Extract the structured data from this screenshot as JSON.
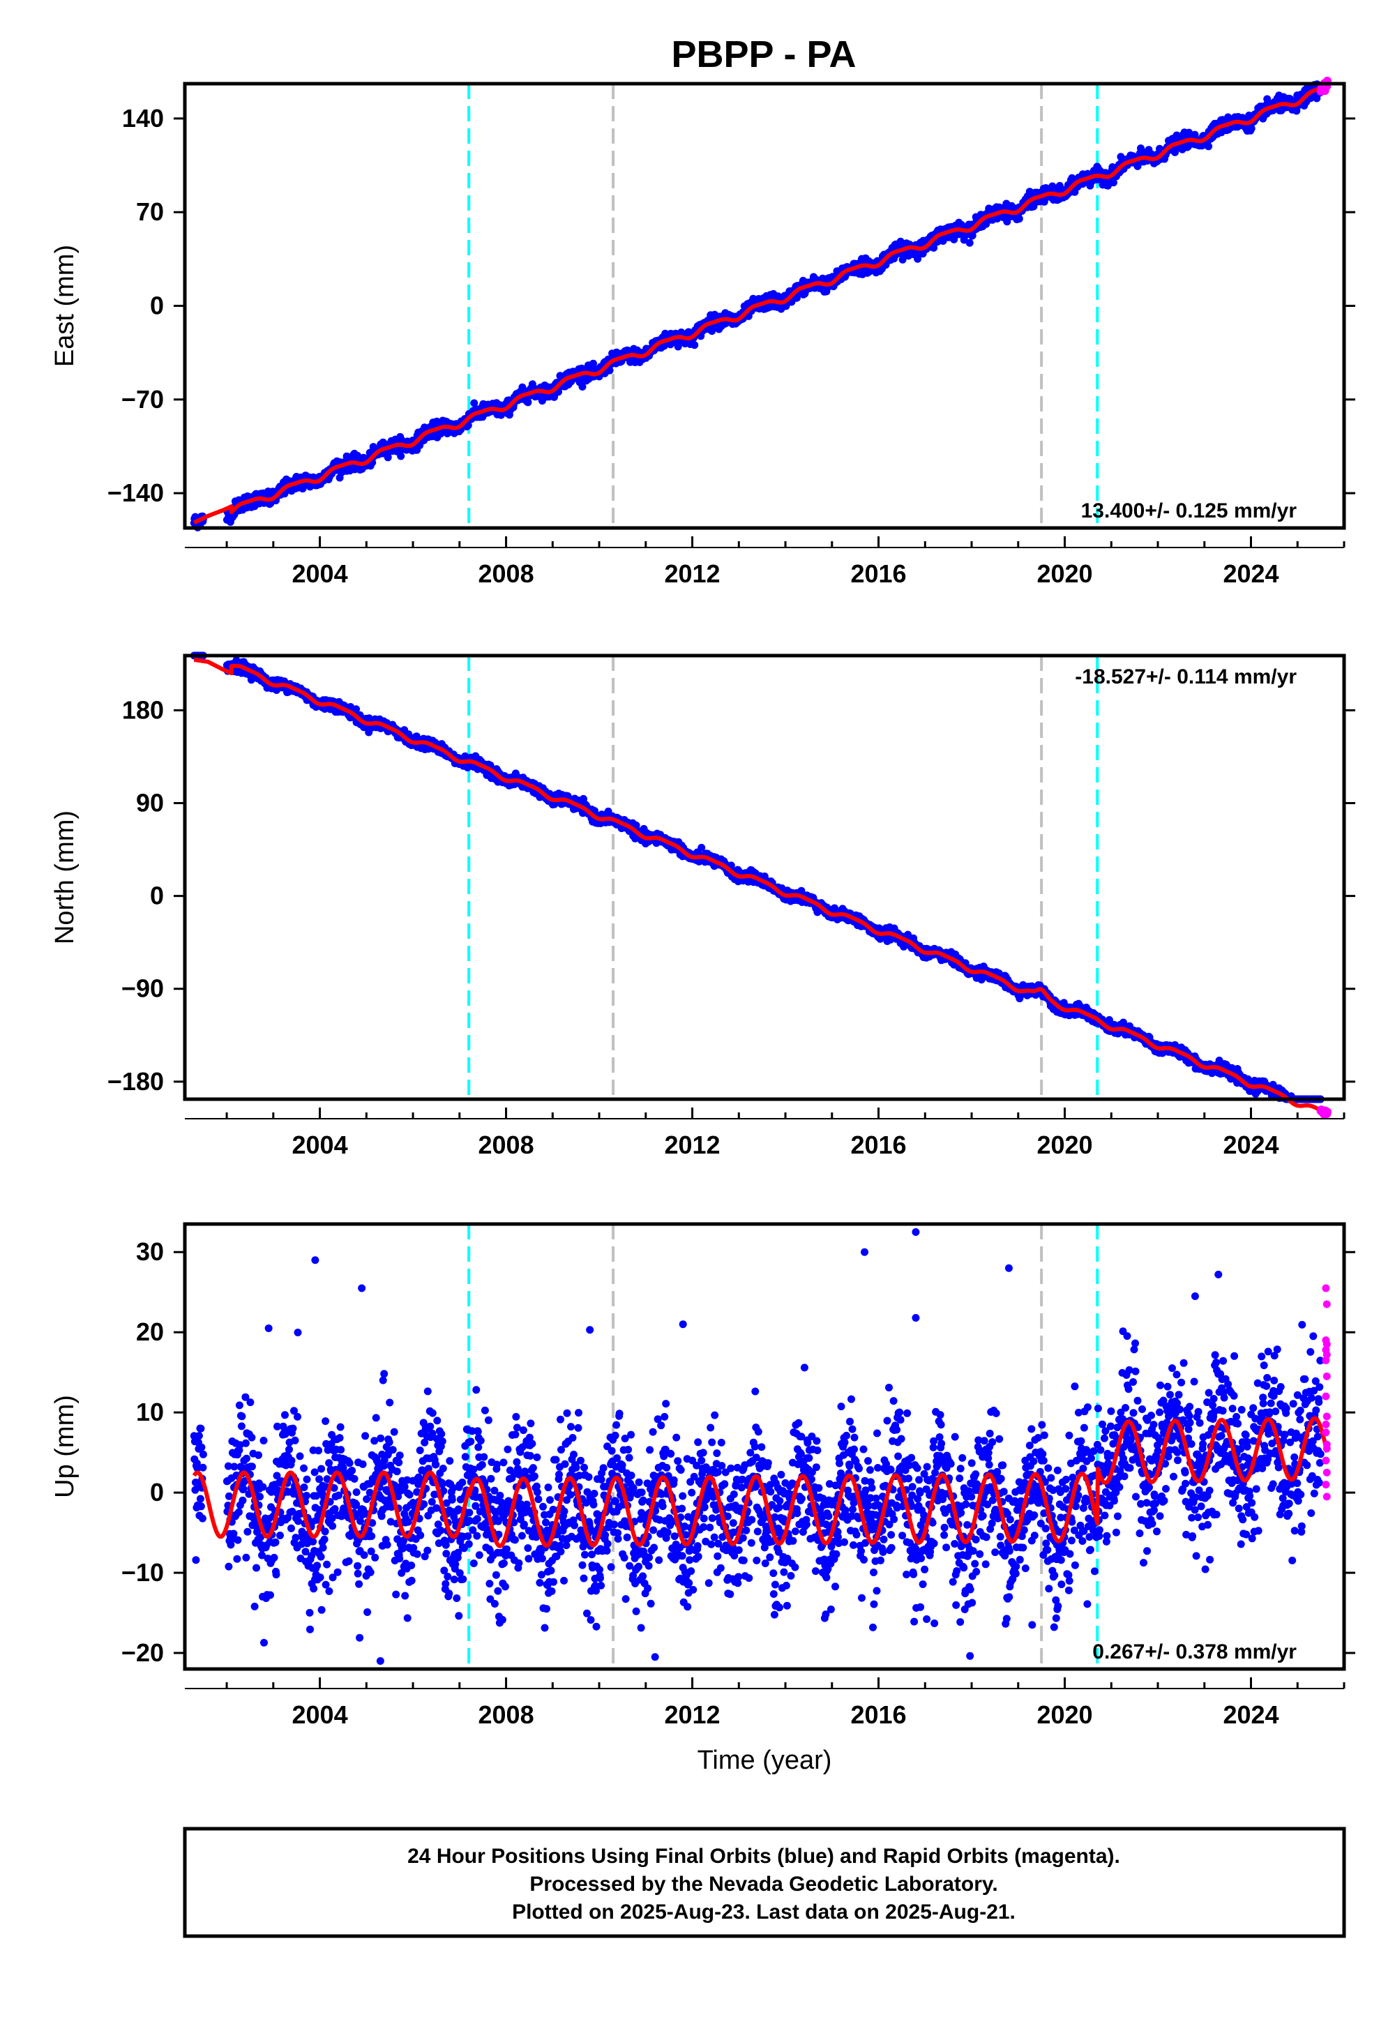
{
  "title": "PBPP - PA",
  "footer": {
    "lines": [
      "24 Hour Positions Using Final Orbits (blue) and Rapid Orbits (magenta).",
      "Processed by the Nevada Geodetic Laboratory.",
      "Plotted on 2025-Aug-23. Last data on 2025-Aug-21."
    ]
  },
  "colors": {
    "final_orbits": "#0000ff",
    "rapid_orbits": "#ff00ff",
    "model_fit": "#ff0000",
    "equipment_change": "#00ffff",
    "other_event": "#c0c0c0"
  },
  "chart_data": [
    {
      "type": "scatter",
      "component": "East",
      "ylabel": "East (mm)",
      "xlabel": "",
      "xlim": [
        2001.1,
        2026.0
      ],
      "ylim": [
        -166,
        166
      ],
      "xticks": [
        2004,
        2008,
        2012,
        2016,
        2020,
        2024
      ],
      "yticks": [
        -140,
        -70,
        0,
        70,
        140
      ],
      "rate": "13.400+/- 0.125 mm/yr",
      "rate_position": "bottom-right",
      "vertical_lines": [
        {
          "x": 2007.2,
          "kind": "equipment_change"
        },
        {
          "x": 2010.3,
          "kind": "other_event"
        },
        {
          "x": 2019.5,
          "kind": "other_event"
        },
        {
          "x": 2020.7,
          "kind": "equipment_change"
        }
      ],
      "trend": {
        "slope": 13.4,
        "ref_year": 2013.5,
        "intercept": 0,
        "annual_amp": 2.5,
        "semiannual_amp": 0.8,
        "noise": 2.5
      },
      "data_span": {
        "start": 2001.3,
        "gap": [
          2001.5,
          2002.0
        ],
        "end": 2025.64
      },
      "model_start": [
        [
          2001.3,
          -162
        ],
        [
          2001.6,
          -157
        ],
        [
          2001.9,
          -153
        ],
        [
          2002.1,
          -150
        ]
      ],
      "rapid_range": [
        2025.5,
        2025.64
      ],
      "outliers": []
    },
    {
      "type": "scatter",
      "component": "North",
      "ylabel": "North (mm)",
      "xlabel": "",
      "xlim": [
        2001.1,
        2026.0
      ],
      "ylim": [
        -197,
        233
      ],
      "xticks": [
        2004,
        2008,
        2012,
        2016,
        2020,
        2024
      ],
      "yticks": [
        -180,
        -90,
        0,
        90,
        180
      ],
      "rate": "-18.527+/- 0.114 mm/yr",
      "rate_position": "top-right",
      "vertical_lines": [
        {
          "x": 2007.2,
          "kind": "equipment_change"
        },
        {
          "x": 2010.3,
          "kind": "other_event"
        },
        {
          "x": 2019.5,
          "kind": "other_event"
        },
        {
          "x": 2020.7,
          "kind": "equipment_change"
        }
      ],
      "trend": {
        "slope": -18.527,
        "ref_year": 2013.5,
        "intercept": 13,
        "annual_amp": 2.5,
        "semiannual_amp": 0.8,
        "noise": 2.5
      },
      "data_span": {
        "start": 2001.3,
        "gap": [
          2001.5,
          2002.0
        ],
        "end": 2025.64
      },
      "model_start": [
        [
          2001.3,
          229
        ],
        [
          2001.6,
          227
        ],
        [
          2001.9,
          220
        ],
        [
          2002.1,
          216
        ]
      ],
      "rapid_range": [
        2025.5,
        2025.64
      ],
      "bump": {
        "x": 2019.5,
        "amp": 6
      },
      "outliers": []
    },
    {
      "type": "scatter",
      "component": "Up",
      "ylabel": "Up (mm)",
      "xlabel": "Time (year)",
      "xlim": [
        2001.1,
        2026.0
      ],
      "ylim": [
        -22,
        33.5
      ],
      "xticks": [
        2004,
        2008,
        2012,
        2016,
        2020,
        2024
      ],
      "yticks": [
        -20,
        -10,
        0,
        10,
        20,
        30
      ],
      "rate": "0.267+/- 0.378 mm/yr",
      "rate_position": "bottom-right",
      "vertical_lines": [
        {
          "x": 2007.2,
          "kind": "equipment_change"
        },
        {
          "x": 2010.3,
          "kind": "other_event"
        },
        {
          "x": 2019.5,
          "kind": "other_event"
        },
        {
          "x": 2020.7,
          "kind": "equipment_change"
        }
      ],
      "model_segments": [
        {
          "start": 2001.3,
          "end": 2007.2,
          "offset": -1.5,
          "slope": 0.0,
          "amp": 4.0
        },
        {
          "start": 2007.2,
          "end": 2020.7,
          "offset": -2.5,
          "slope": 0.05,
          "amp": 4.2
        },
        {
          "start": 2020.7,
          "end": 2025.64,
          "offset": 5.0,
          "slope": 0.1,
          "amp": 3.8
        }
      ],
      "data_span": {
        "start": 2001.3,
        "gap": [
          2001.5,
          2002.0
        ],
        "end": 2025.64
      },
      "noise": 4.5,
      "rapid_range": [
        2025.5,
        2025.64
      ],
      "rapid_values": [
        25.5,
        23.5,
        19,
        18.5,
        17.8,
        17.2,
        16.5,
        14.5,
        12,
        9.5,
        7.5,
        5.5,
        4,
        2.5,
        1,
        -0.5,
        8.5,
        6
      ],
      "outliers": [
        [
          2003.9,
          29
        ],
        [
          2004.9,
          25.5
        ],
        [
          2002.9,
          20.5
        ],
        [
          2015.7,
          30
        ],
        [
          2016.8,
          32.5
        ],
        [
          2016.8,
          21.8
        ],
        [
          2018.8,
          28
        ],
        [
          2011.8,
          21
        ],
        [
          2009.8,
          20.3
        ],
        [
          2023.3,
          27.2
        ],
        [
          2022.8,
          24.5
        ],
        [
          2005.3,
          -21
        ],
        [
          2011.2,
          -20.5
        ],
        [
          2019.3,
          -16.5
        ],
        [
          2017.2,
          -16.3
        ],
        [
          2020.1,
          -11
        ],
        [
          2004.2,
          -12.3
        ],
        [
          2002.6,
          -14.2
        ]
      ]
    }
  ]
}
